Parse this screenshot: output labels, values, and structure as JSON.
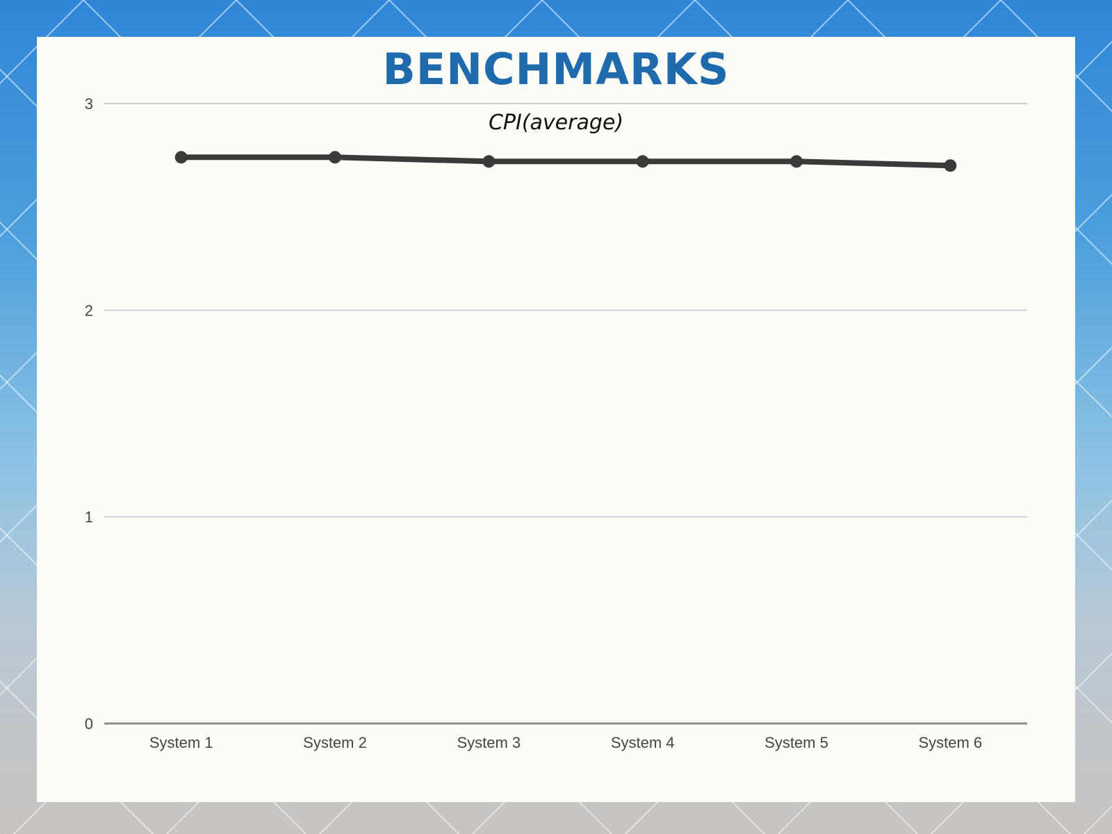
{
  "slide": {
    "title": "BENCHMARKS"
  },
  "colors": {
    "title": "#1f6aac",
    "line": "#3a3a3a",
    "grid": "#cfcfcf",
    "axis": "#8c8c8c",
    "panel": "#fdfcf7"
  },
  "chart_data": {
    "type": "line",
    "title": "CPI(average)",
    "xlabel": "",
    "ylabel": "",
    "categories": [
      "System 1",
      "System 2",
      "System 3",
      "System 4",
      "System 5",
      "System 6"
    ],
    "series": [
      {
        "values": [
          2.74,
          2.74,
          2.72,
          2.72,
          2.72,
          2.7
        ]
      }
    ],
    "ylim": [
      0,
      3
    ],
    "yticks": [
      "0",
      "1",
      "2",
      "3"
    ],
    "grid": true,
    "legend": "none"
  }
}
